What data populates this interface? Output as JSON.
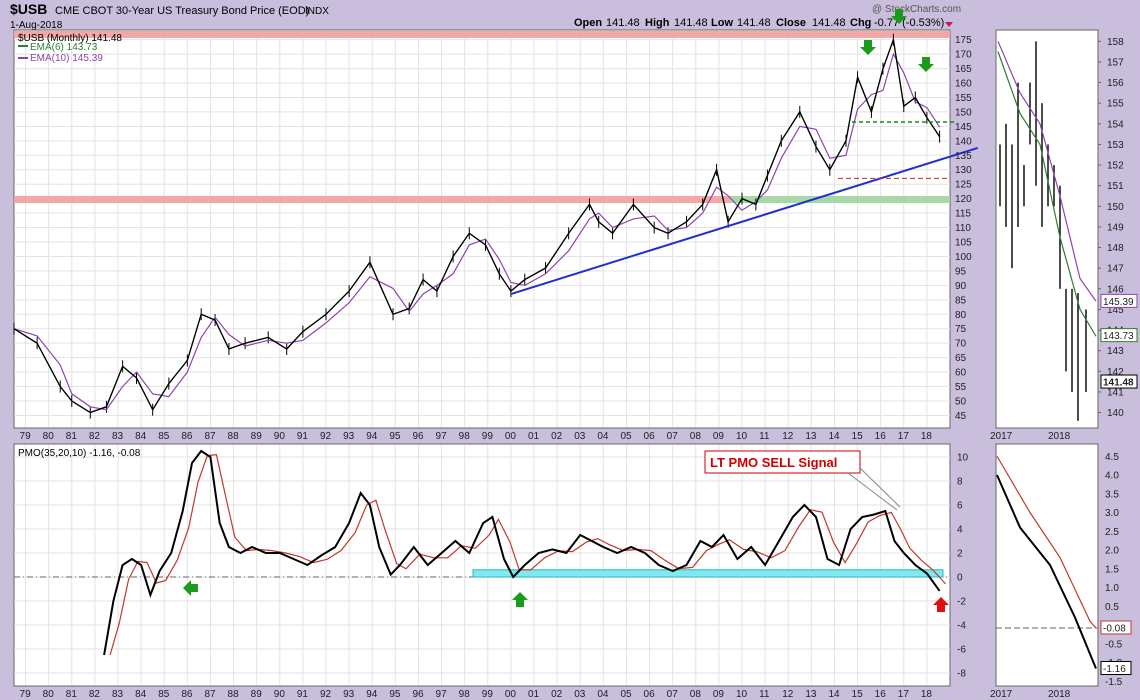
{
  "header": {
    "symbol": "$USB",
    "name": "CME CBOT 30-Year US Treasury Bond Price (EOD)",
    "exchange": "INDX",
    "date": "1-Aug-2018",
    "watermark": "@ StockCharts.com",
    "quote": {
      "open_label": "Open",
      "open": "141.48",
      "high_label": "High",
      "high": "141.48",
      "low_label": "Low",
      "low": "141.48",
      "close_label": "Close",
      "close": "141.48",
      "chg_label": "Chg",
      "chg": "-0.77 (-0.53%)"
    }
  },
  "price_panel": {
    "legend": [
      {
        "label": "$USB (Monthly) 141.48",
        "color": "#000000"
      },
      {
        "label": "EMA(6) 143.73",
        "color": "#2e7d32"
      },
      {
        "label": "EMA(10) 145.39",
        "color": "#8e44ad"
      }
    ]
  },
  "pmo_panel": {
    "legend": "PMO(35,20,10) -1.16, -0.08",
    "annotation": "LT PMO SELL Signal"
  },
  "colors": {
    "background": "#ffffff",
    "frame": "#c9bedc",
    "price": "#000000",
    "ema6": "#2e7d32",
    "ema10": "#8e44ad",
    "trendline": "#1f2fd0",
    "resistance_band": "#f4a7a7",
    "support_band": "#a8d8a8",
    "pmo": "#000000",
    "pmo_signal": "#c0392b",
    "zone": "#7fe8f0",
    "arrow_green": "#1a9c1a",
    "arrow_red": "#e01010"
  },
  "chart_data": [
    {
      "type": "line",
      "title": "$USB Monthly",
      "x_ticks": [
        "79",
        "80",
        "81",
        "82",
        "83",
        "84",
        "85",
        "86",
        "87",
        "88",
        "89",
        "90",
        "91",
        "92",
        "93",
        "94",
        "95",
        "96",
        "97",
        "98",
        "99",
        "00",
        "01",
        "02",
        "03",
        "04",
        "05",
        "06",
        "07",
        "08",
        "09",
        "10",
        "11",
        "12",
        "13",
        "14",
        "15",
        "16",
        "17",
        "18"
      ],
      "xlim": [
        1978.5,
        2019
      ],
      "ylim": [
        41,
        178
      ],
      "y_ticks": [
        45,
        50,
        55,
        60,
        65,
        70,
        75,
        80,
        85,
        90,
        95,
        100,
        105,
        110,
        115,
        120,
        125,
        130,
        135,
        140,
        145,
        150,
        155,
        160,
        165,
        170,
        175
      ],
      "series": [
        {
          "name": "$USB (Monthly)",
          "x": [
            1978.5,
            1979.5,
            1980.5,
            1981.0,
            1981.8,
            1982.5,
            1983.2,
            1983.8,
            1984.5,
            1985.2,
            1986.0,
            1986.6,
            1987.2,
            1987.8,
            1988.5,
            1989.5,
            1990.3,
            1991.0,
            1992.0,
            1993.0,
            1993.9,
            1994.9,
            1995.6,
            1996.2,
            1996.8,
            1997.5,
            1998.2,
            1998.9,
            1999.5,
            2000.0,
            2000.6,
            2001.5,
            2002.5,
            2003.4,
            2003.8,
            2004.4,
            2005.3,
            2006.2,
            2006.8,
            2007.6,
            2008.3,
            2008.9,
            2009.4,
            2010.0,
            2010.6,
            2011.1,
            2011.7,
            2012.5,
            2013.2,
            2013.8,
            2014.5,
            2015.0,
            2015.6,
            2016.1,
            2016.55,
            2017.0,
            2017.5,
            2018.0,
            2018.55
          ],
          "y": [
            75,
            70,
            55,
            50,
            46,
            48,
            62,
            58,
            47,
            56,
            64,
            80,
            78,
            68,
            70,
            72,
            68,
            74,
            80,
            88,
            98,
            80,
            82,
            92,
            88,
            100,
            108,
            104,
            94,
            88,
            92,
            96,
            108,
            118,
            112,
            108,
            118,
            110,
            108,
            112,
            118,
            130,
            112,
            120,
            118,
            128,
            140,
            150,
            138,
            130,
            140,
            162,
            150,
            165,
            175,
            152,
            155,
            148,
            141.48
          ]
        },
        {
          "name": "EMA(6)",
          "value_last": 143.73
        },
        {
          "name": "EMA(10)",
          "value_last": 145.39
        }
      ],
      "annotations": {
        "resistance_band": 175.5,
        "support_band_upper": 120,
        "trendline": {
          "x": [
            2000.0,
            2018.9
          ],
          "y": [
            87,
            136.5
          ]
        },
        "dashed_levels": [
          146.5,
          127
        ]
      }
    },
    {
      "type": "line",
      "title": "PMO(35,20,10)",
      "x_ticks": [
        "79",
        "80",
        "81",
        "82",
        "83",
        "84",
        "85",
        "86",
        "87",
        "88",
        "89",
        "90",
        "91",
        "92",
        "93",
        "94",
        "95",
        "96",
        "97",
        "98",
        "99",
        "00",
        "01",
        "02",
        "03",
        "04",
        "05",
        "06",
        "07",
        "08",
        "09",
        "10",
        "11",
        "12",
        "13",
        "14",
        "15",
        "16",
        "17",
        "18"
      ],
      "xlim": [
        1978.5,
        2019
      ],
      "ylim": [
        -9,
        11
      ],
      "y_ticks": [
        -8,
        -6,
        -4,
        -2,
        0,
        2,
        4,
        6,
        8,
        10
      ],
      "series": [
        {
          "name": "PMO",
          "x": [
            1982.4,
            1982.8,
            1983.2,
            1983.6,
            1984.0,
            1984.4,
            1984.8,
            1985.3,
            1985.8,
            1986.2,
            1986.6,
            1987.0,
            1987.4,
            1987.8,
            1988.3,
            1988.8,
            1989.4,
            1990.0,
            1990.6,
            1991.2,
            1991.8,
            1992.4,
            1993.0,
            1993.5,
            1993.9,
            1994.3,
            1994.8,
            1995.2,
            1995.8,
            1996.4,
            1997.0,
            1997.6,
            1998.2,
            1998.8,
            1999.2,
            1999.7,
            2000.1,
            2000.6,
            2001.2,
            2001.8,
            2002.4,
            2003.0,
            2003.5,
            2004.0,
            2004.6,
            2005.2,
            2005.8,
            2006.4,
            2007.0,
            2007.6,
            2008.2,
            2008.7,
            2009.2,
            2009.8,
            2010.4,
            2011.0,
            2011.6,
            2012.2,
            2012.7,
            2013.2,
            2013.7,
            2014.2,
            2014.7,
            2015.2,
            2015.7,
            2016.2,
            2016.6,
            2017.0,
            2017.5,
            2018.0,
            2018.55
          ],
          "y": [
            -6.5,
            -2.0,
            1.0,
            1.5,
            1.0,
            -1.5,
            0.5,
            2.0,
            5.5,
            9.5,
            10.5,
            10.0,
            4.5,
            2.5,
            2.0,
            2.5,
            2.0,
            2.0,
            1.5,
            1.0,
            1.8,
            2.5,
            4.5,
            7.0,
            6.0,
            2.5,
            0.2,
            1.0,
            2.5,
            1.0,
            2.0,
            3.0,
            2.0,
            4.5,
            5.0,
            1.5,
            0.0,
            1.0,
            2.0,
            2.3,
            2.0,
            3.5,
            3.0,
            2.5,
            2.0,
            2.5,
            2.0,
            1.0,
            0.5,
            1.0,
            3.0,
            2.5,
            3.5,
            1.5,
            2.5,
            1.0,
            3.0,
            5.0,
            6.0,
            5.0,
            1.5,
            1.0,
            4.0,
            5.0,
            5.2,
            5.5,
            3.0,
            2.0,
            1.0,
            0.3,
            -1.16
          ]
        },
        {
          "name": "Signal",
          "value_last": -0.08
        }
      ],
      "zone": [
        0,
        0.6
      ]
    }
  ],
  "inset": {
    "price_ticks": [
      140,
      141,
      142,
      143,
      144,
      145,
      146,
      147,
      148,
      149,
      150,
      151,
      152,
      153,
      154,
      155,
      156,
      157,
      158
    ],
    "pmo_ticks": [
      "4.5",
      "4.0",
      "3.5",
      "3.0",
      "2.5",
      "2.0",
      "1.5",
      "1.0",
      "0.5",
      "0.0",
      "-0.5",
      "-1.0",
      "-1.5"
    ],
    "x_ticks": [
      "2017",
      "2018"
    ],
    "labels": {
      "ema10": "145.39",
      "ema6": "143.73",
      "close": "141.48",
      "signal": "-0.08",
      "pmo": "-1.16"
    }
  }
}
